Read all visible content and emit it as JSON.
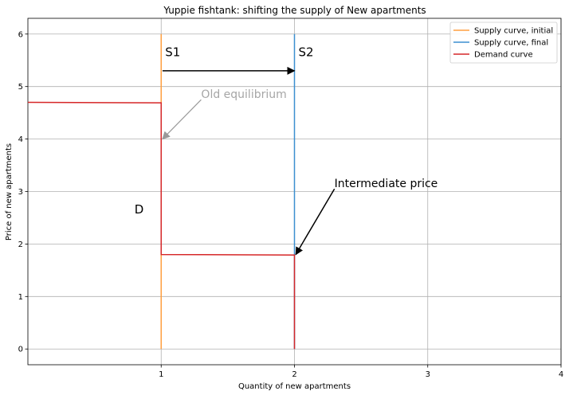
{
  "chart_data": {
    "type": "line",
    "title": "Yuppie fishtank: shifting the supply of New apartments",
    "xlabel": "Quantity of new apartments",
    "ylabel": "Price of new apartments",
    "xlim": [
      0,
      4
    ],
    "ylim": [
      -0.3,
      6.3
    ],
    "x_ticks": [
      1,
      2,
      3,
      4
    ],
    "x_tick_labels": [
      "1",
      "2",
      "3",
      "4"
    ],
    "y_ticks": [
      0,
      1,
      2,
      3,
      4,
      5,
      6
    ],
    "y_tick_labels": [
      "0",
      "1",
      "2",
      "3",
      "4",
      "5",
      "6"
    ],
    "grid": true,
    "legend_position": "top-right",
    "series": [
      {
        "name": "Supply curve, initial",
        "color": "#ff9f40",
        "x": [
          1,
          1
        ],
        "y": [
          0,
          6
        ]
      },
      {
        "name": "Supply curve, final",
        "color": "#3b8fd0",
        "x": [
          2,
          2
        ],
        "y": [
          0,
          6
        ]
      },
      {
        "name": "Demand curve",
        "color": "#d62728",
        "x": [
          0,
          1,
          1,
          2,
          2
        ],
        "y": [
          4.7,
          4.69,
          1.8,
          1.79,
          0
        ]
      }
    ],
    "annotations": [
      {
        "text": "S1",
        "color": "#000000",
        "at": [
          1.03,
          5.58
        ]
      },
      {
        "text": "S2",
        "color": "#000000",
        "at": [
          2.03,
          5.58
        ]
      },
      {
        "text": "D",
        "color": "#000000",
        "at": [
          0.8,
          2.58
        ]
      },
      {
        "text": "Old equilibrium",
        "color": "#a6a6a6",
        "at": [
          1.3,
          4.78
        ],
        "arrow_from": [
          1.3,
          4.75
        ],
        "arrow_to": [
          1.01,
          4.0
        ],
        "arrow_color": "#999999"
      },
      {
        "text": "Intermediate price",
        "color": "#000000",
        "at": [
          2.3,
          3.08
        ],
        "arrow_from": [
          2.3,
          3.05
        ],
        "arrow_to": [
          2.01,
          1.8
        ],
        "arrow_color": "#000000"
      },
      {
        "text": "",
        "color": "#000000",
        "arrow_from": [
          1.01,
          5.3
        ],
        "arrow_to": [
          2.0,
          5.3
        ],
        "arrow_color": "#000000"
      }
    ]
  }
}
